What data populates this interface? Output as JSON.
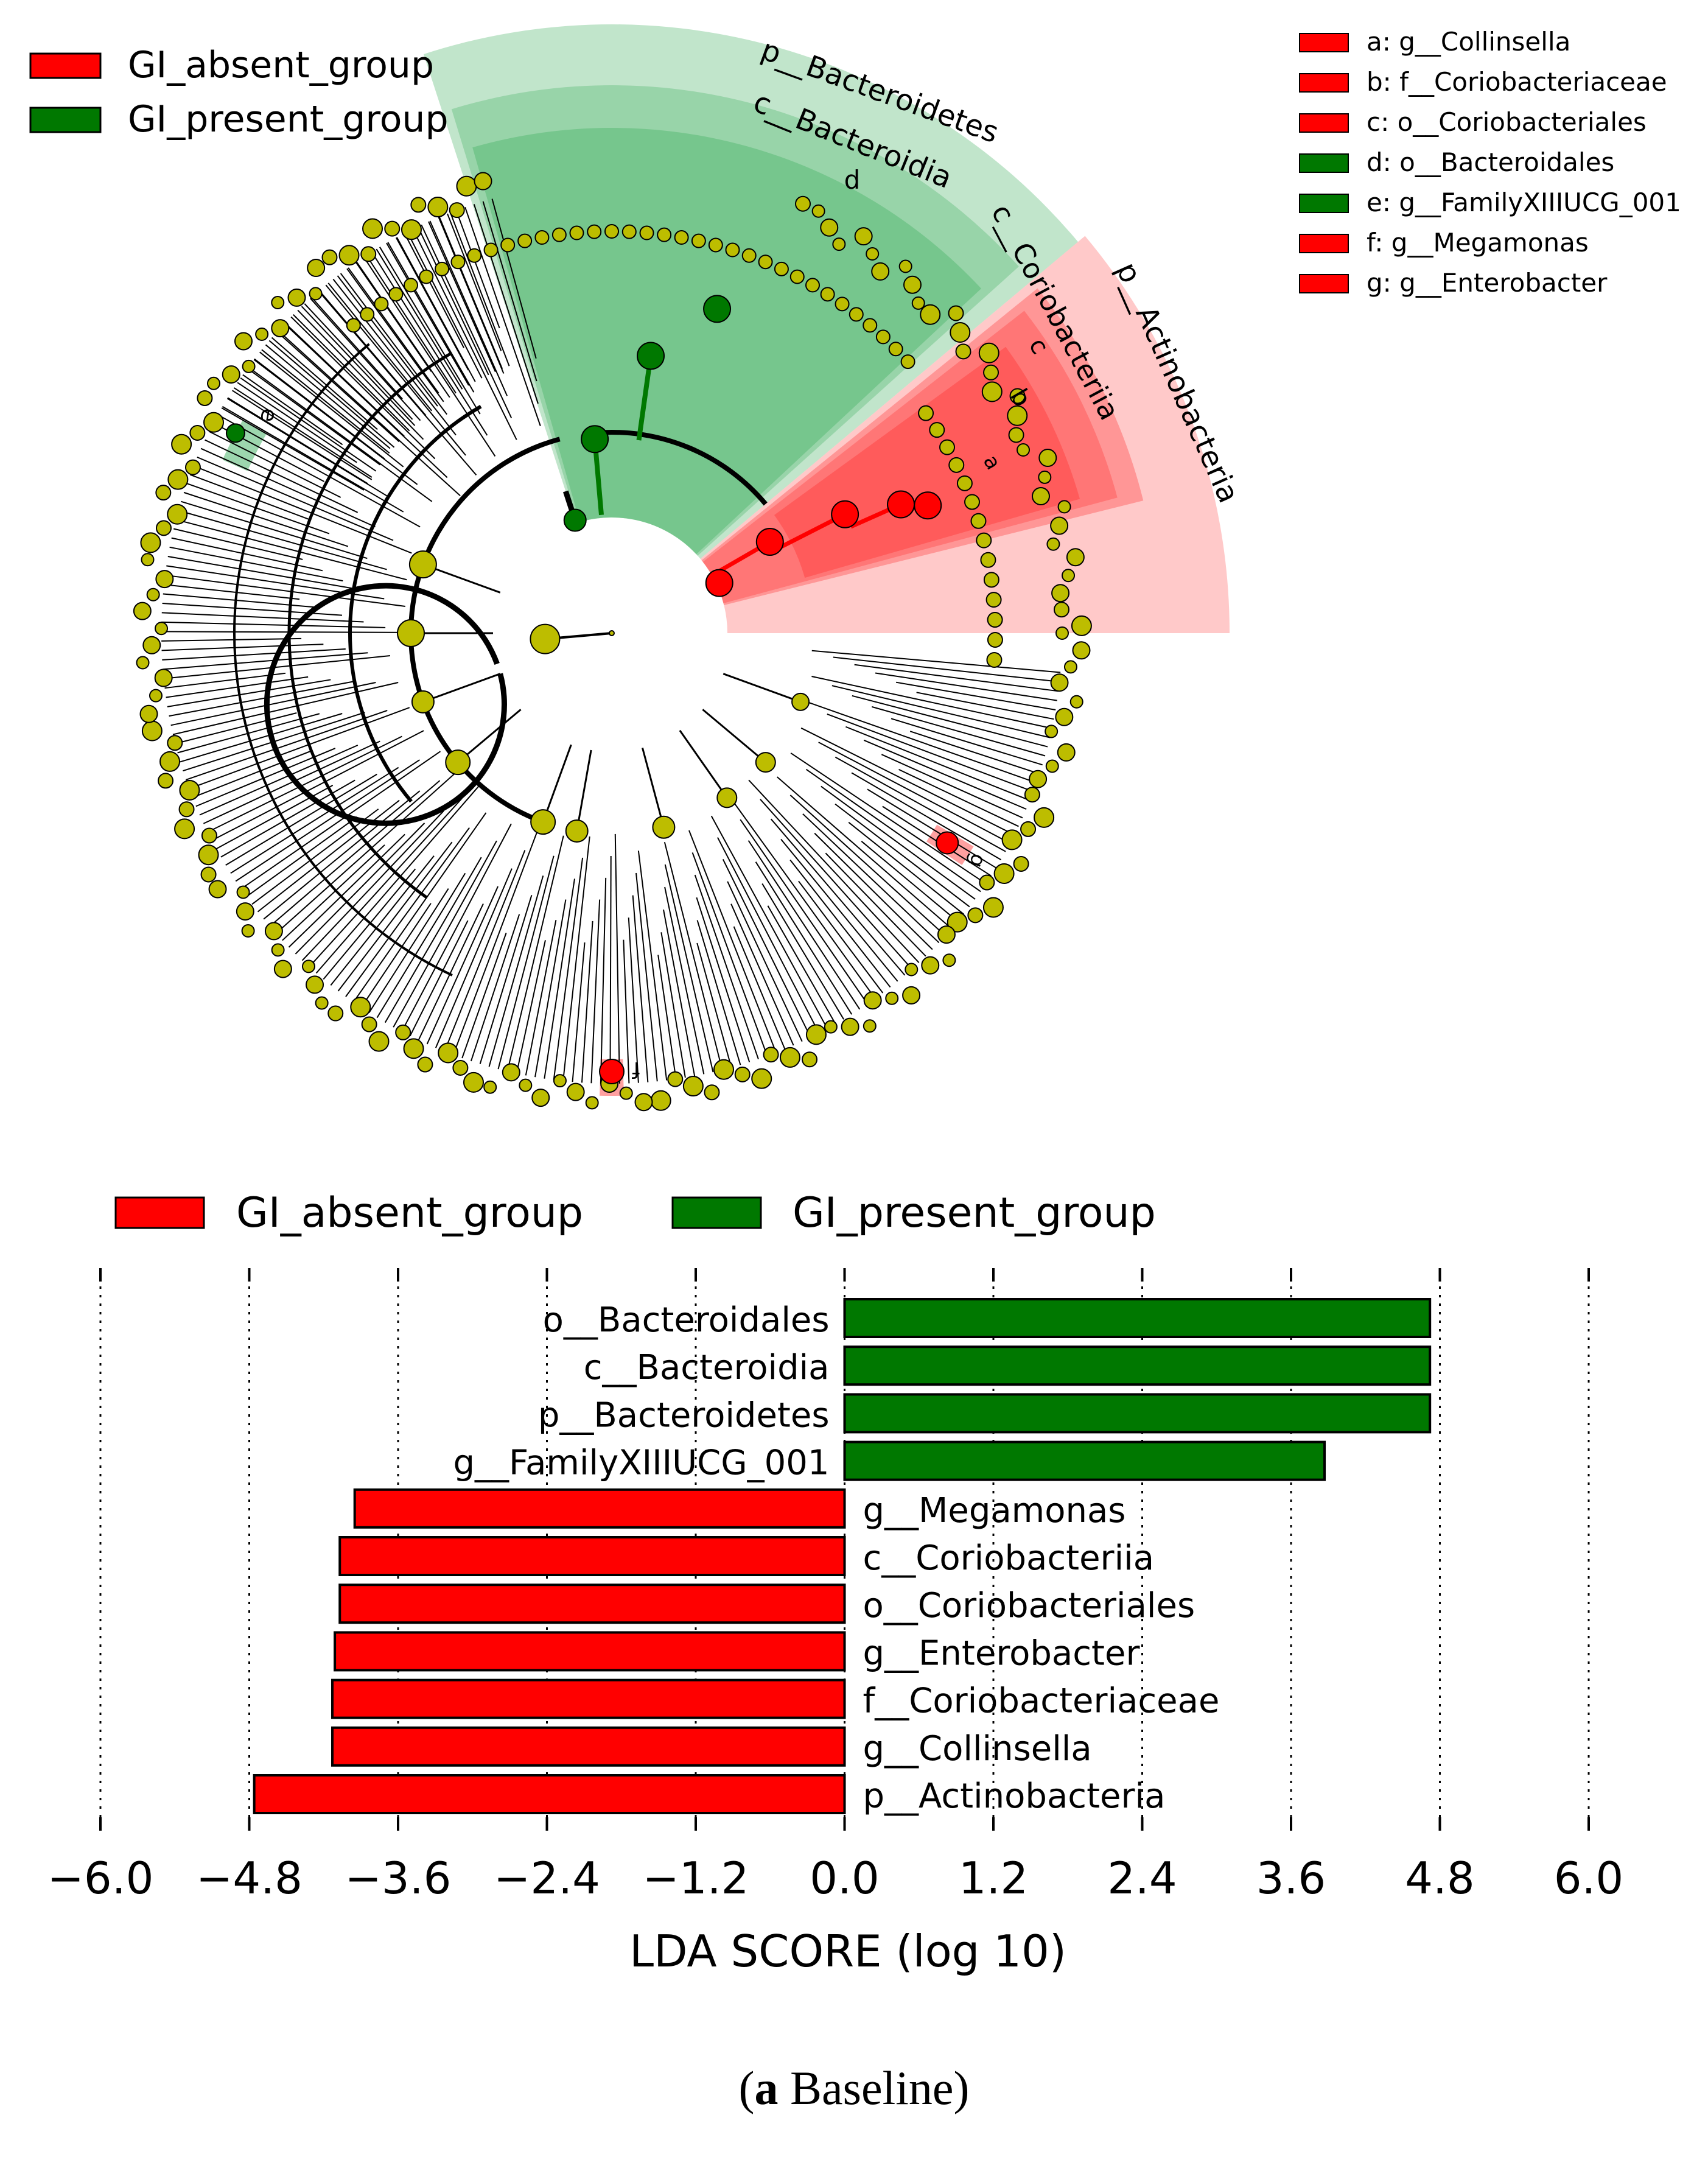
{
  "colors": {
    "absent": "#ff0000",
    "present": "#007800",
    "node": "#bdbd00",
    "absent_shade": "#ff8a8a",
    "present_shade": "#5ac27a"
  },
  "cladogram": {
    "legend": [
      {
        "label": "GI_absent_group",
        "color": "#ff0000"
      },
      {
        "label": "GI_present_group",
        "color": "#007800"
      }
    ],
    "key": [
      {
        "letter": "a",
        "label": "a: g__Collinsella",
        "group": "absent"
      },
      {
        "letter": "b",
        "label": "b: f__Coriobacteriaceae",
        "group": "absent"
      },
      {
        "letter": "c",
        "label": "c: o__Coriobacteriales",
        "group": "absent"
      },
      {
        "letter": "d",
        "label": "d: o__Bacteroidales",
        "group": "present"
      },
      {
        "letter": "e",
        "label": "e: g__FamilyXIIIUCG_001",
        "group": "present"
      },
      {
        "letter": "f",
        "label": "f: g__Megamonas",
        "group": "absent"
      },
      {
        "letter": "g",
        "label": "g: g__Enterobacter",
        "group": "absent"
      }
    ],
    "clade_labels": {
      "p_bacteroidetes": "p__Bacteroidetes",
      "c_bacteroidia": "c__Bacteroidia",
      "d": "d",
      "c_coriobacteriia": "c__Coriobacteriia",
      "p_actinobacteria": "p__Actinobacteria",
      "c": "c",
      "b": "b",
      "a": "a",
      "e": "e",
      "f": "f",
      "g": "g"
    }
  },
  "chart_data": {
    "type": "bar",
    "orientation": "horizontal",
    "legend": [
      {
        "label": "GI_absent_group",
        "color": "#ff0000"
      },
      {
        "label": "GI_present_group",
        "color": "#007800"
      }
    ],
    "categories": [
      "o__Bacteroidales",
      "c__Bacteroidia",
      "p__Bacteroidetes",
      "g__FamilyXIIIUCG_001",
      "g__Megamonas",
      "c__Coriobacteriia",
      "o__Coriobacteriales",
      "g__Enterobacter",
      "f__Coriobacteriaceae",
      "g__Collinsella",
      "p__Actinobacteria"
    ],
    "values": [
      4.72,
      4.72,
      4.72,
      3.87,
      -3.95,
      -4.07,
      -4.07,
      -4.11,
      -4.13,
      -4.13,
      -4.76
    ],
    "groups": [
      "present",
      "present",
      "present",
      "present",
      "absent",
      "absent",
      "absent",
      "absent",
      "absent",
      "absent",
      "absent"
    ],
    "xlim": [
      -6.0,
      6.0
    ],
    "xticks": [
      -6.0,
      -4.8,
      -3.6,
      -2.4,
      -1.2,
      0.0,
      1.2,
      2.4,
      3.6,
      4.8,
      6.0
    ],
    "xtick_labels": [
      "−6.0",
      "−4.8",
      "−3.6",
      "−2.4",
      "−1.2",
      "0.0",
      "1.2",
      "2.4",
      "3.6",
      "4.8",
      "6.0"
    ],
    "xlabel": "LDA SCORE (log 10)",
    "grid": "vertical dotted"
  },
  "caption": {
    "letter": "a",
    "text": " Baseline"
  }
}
